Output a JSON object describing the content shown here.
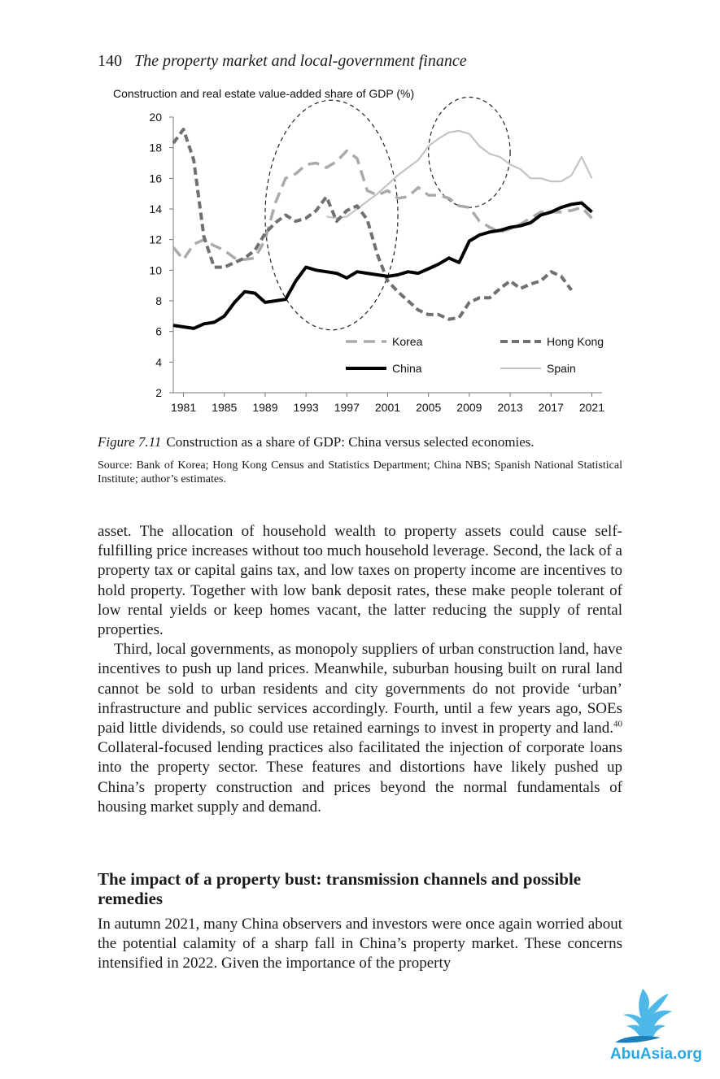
{
  "running_head": {
    "page_number": "140",
    "title": "The property market and local-government finance"
  },
  "figure": {
    "label": "Figure 7.11",
    "caption": "Construction as a share of GDP: China versus selected economies.",
    "source": "Source: Bank of Korea; Hong Kong Census and Statistics Department; China NBS; Spanish National Statistical Institute; author’s estimates."
  },
  "chart_data": {
    "type": "line",
    "title": "Construction and real estate value-added share of GDP (%)",
    "xlabel": "",
    "ylabel": "",
    "xlim": [
      1980,
      2022
    ],
    "ylim": [
      2,
      20
    ],
    "x_ticks": [
      "1981",
      "1985",
      "1989",
      "1993",
      "1997",
      "2001",
      "2005",
      "2009",
      "2013",
      "2017",
      "2021"
    ],
    "y_ticks": [
      "2",
      "4",
      "6",
      "8",
      "10",
      "12",
      "14",
      "16",
      "18",
      "20"
    ],
    "grid": false,
    "legend_position": "bottom-right",
    "series": [
      {
        "name": "Korea",
        "color": "#aaaaaa",
        "style": "dashed",
        "x": [
          1980,
          1981,
          1982,
          1983,
          1984,
          1985,
          1986,
          1987,
          1988,
          1989,
          1990,
          1991,
          1992,
          1993,
          1994,
          1995,
          1996,
          1997,
          1998,
          1999,
          2000,
          2001,
          2002,
          2003,
          2004,
          2005,
          2006,
          2007,
          2008,
          2009,
          2010,
          2011,
          2012,
          2013,
          2014,
          2015,
          2016,
          2017,
          2018,
          2019,
          2020,
          2021
        ],
        "y": [
          11.5,
          10.7,
          11.7,
          12.0,
          11.6,
          11.3,
          10.8,
          10.7,
          10.8,
          12.0,
          14.4,
          16.0,
          16.3,
          16.9,
          17.0,
          16.7,
          17.1,
          17.8,
          17.3,
          15.2,
          14.9,
          15.2,
          14.7,
          14.8,
          15.4,
          14.9,
          14.9,
          14.7,
          14.2,
          14.1,
          13.2,
          12.8,
          12.5,
          12.7,
          13.0,
          13.4,
          13.8,
          13.8,
          13.8,
          13.9,
          14.1,
          13.4
        ]
      },
      {
        "name": "Hong Kong",
        "color": "#707070",
        "style": "dashed",
        "x": [
          1980,
          1981,
          1982,
          1983,
          1984,
          1985,
          1986,
          1987,
          1988,
          1989,
          1990,
          1991,
          1992,
          1993,
          1994,
          1995,
          1996,
          1997,
          1998,
          1999,
          2000,
          2001,
          2002,
          2003,
          2004,
          2005,
          2006,
          2007,
          2008,
          2009,
          2010,
          2011,
          2012,
          2013,
          2014,
          2015,
          2016,
          2017,
          2018,
          2019
        ],
        "y": [
          18.3,
          19.2,
          17.2,
          12.2,
          10.2,
          10.2,
          10.5,
          10.8,
          11.3,
          12.4,
          13.1,
          13.6,
          13.2,
          13.4,
          13.9,
          14.8,
          13.2,
          13.9,
          14.2,
          13.3,
          11.0,
          9.3,
          8.6,
          8.0,
          7.4,
          7.1,
          7.1,
          6.8,
          6.9,
          7.9,
          8.2,
          8.2,
          8.8,
          9.3,
          8.8,
          9.1,
          9.3,
          9.9,
          9.6,
          8.7
        ]
      },
      {
        "name": "China",
        "color": "#000000",
        "style": "solid",
        "x": [
          1980,
          1981,
          1982,
          1983,
          1984,
          1985,
          1986,
          1987,
          1988,
          1989,
          1990,
          1991,
          1992,
          1993,
          1994,
          1995,
          1996,
          1997,
          1998,
          1999,
          2000,
          2001,
          2002,
          2003,
          2004,
          2005,
          2006,
          2007,
          2008,
          2009,
          2010,
          2011,
          2012,
          2013,
          2014,
          2015,
          2016,
          2017,
          2018,
          2019,
          2020,
          2021
        ],
        "y": [
          6.4,
          6.3,
          6.2,
          6.5,
          6.6,
          7.0,
          7.9,
          8.6,
          8.5,
          7.9,
          8.0,
          8.1,
          9.3,
          10.2,
          10.0,
          9.9,
          9.8,
          9.5,
          9.9,
          9.8,
          9.7,
          9.6,
          9.7,
          9.9,
          9.8,
          10.1,
          10.4,
          10.8,
          10.5,
          11.9,
          12.3,
          12.5,
          12.6,
          12.8,
          12.9,
          13.1,
          13.6,
          13.8,
          14.1,
          14.3,
          14.4,
          13.8
        ]
      },
      {
        "name": "Spain",
        "color": "#c4c4c4",
        "style": "solid",
        "x": [
          1995,
          1996,
          1997,
          1998,
          1999,
          2000,
          2001,
          2002,
          2003,
          2004,
          2005,
          2006,
          2007,
          2008,
          2009,
          2010,
          2011,
          2012,
          2013,
          2014,
          2015,
          2016,
          2017,
          2018,
          2019,
          2020,
          2021
        ],
        "y": [
          13.5,
          13.4,
          13.5,
          14.0,
          14.5,
          15.0,
          15.6,
          16.2,
          16.7,
          17.2,
          18.1,
          18.6,
          19.0,
          19.1,
          18.9,
          18.1,
          17.6,
          17.4,
          16.9,
          16.6,
          16.0,
          16.0,
          15.8,
          15.8,
          16.2,
          17.4,
          16.0
        ]
      }
    ],
    "annotations": [
      {
        "type": "dashed-ellipse",
        "label": "",
        "x_center": 1995.5,
        "y_center": 13.6,
        "x_radius": 6.5,
        "y_radius": 7.5
      },
      {
        "type": "dashed-ellipse",
        "label": "",
        "x_center": 2009.0,
        "y_center": 17.7,
        "x_radius": 4.0,
        "y_radius": 3.6
      }
    ]
  },
  "body": {
    "para1": "asset. The allocation of household wealth to property assets could cause self-fulfilling price increases without too much household leverage. Second, the lack of a property tax or capital gains tax, and low taxes on property income are incentives to hold property. Together with low bank deposit rates, these make people tolerant of low rental yields or keep homes vacant, the latter reducing the supply of rental properties.",
    "para2_a": "Third, local governments, as monopoly suppliers of urban construction land, have incentives to push up land prices. Meanwhile, suburban housing built on rural land cannot be sold to urban residents and city governments do not provide ‘urban’ infrastructure and public services accordingly. Fourth, until a few years ago, SOEs paid little dividends, so could use retained earnings to invest in property and land.",
    "para2_footnote": "40",
    "para2_b": " Collateral-focused lending practices also facilitated the injection of corporate loans into the property sector. These features and distortions have likely pushed up China’s property construction and prices beyond the normal fundamentals of housing market supply and demand.",
    "section_heading": "The impact of a property bust: transmission channels and possible remedies",
    "para3": "In autumn 2021, many China observers and investors were once again worried about the potential calamity of a sharp fall in China’s property market. These concerns intensified in 2022. Given the importance of the property"
  },
  "watermark": {
    "text": "AbuAsia.org",
    "icon": "eagle-logo-icon",
    "color": "#2aa6e0"
  }
}
